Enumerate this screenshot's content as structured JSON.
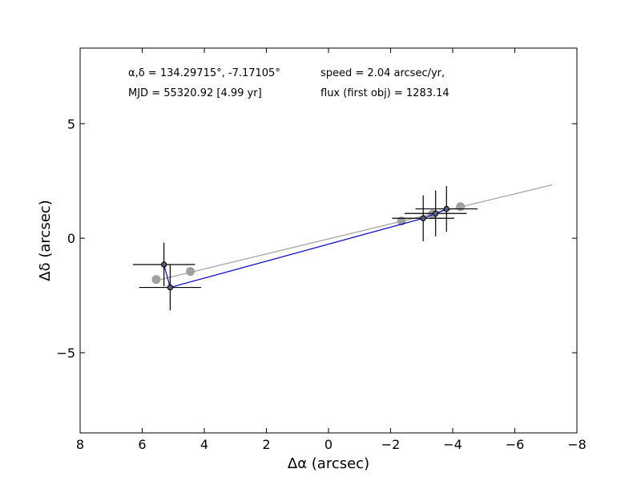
{
  "chart_data": {
    "type": "scatter",
    "xlabel": "Δα (arcsec)",
    "ylabel": "Δδ (arcsec)",
    "xlim": [
      8,
      -8
    ],
    "ylim": [
      -8.5,
      8.3
    ],
    "xticks": [
      8,
      6,
      4,
      2,
      0,
      -2,
      -4,
      -6,
      -8
    ],
    "xtick_labels": [
      "8",
      "6",
      "4",
      "2",
      "0",
      "−2",
      "−4",
      "−6",
      "−8"
    ],
    "yticks": [
      5,
      0,
      -5
    ],
    "ytick_labels": [
      "5",
      "0",
      "−5"
    ],
    "grid": false,
    "annotations": {
      "coords": "α,δ = 134.29715°, -7.17105°",
      "mjd": "MJD = 55320.92 [4.99 yr]",
      "speed": "speed = 2.04 arcsec/yr,",
      "flux": "flux (first obj) = 1283.14"
    },
    "observed": {
      "color": "#0000cc",
      "points": [
        {
          "x": 5.3,
          "y": -1.15,
          "xerr": 1.0,
          "yerr": 0.95
        },
        {
          "x": 5.1,
          "y": -2.15,
          "xerr": 1.0,
          "yerr": 1.0
        },
        {
          "x": -3.05,
          "y": 0.87,
          "xerr": 1.0,
          "yerr": 1.0
        },
        {
          "x": -3.45,
          "y": 1.08,
          "xerr": 1.0,
          "yerr": 1.0
        },
        {
          "x": -3.8,
          "y": 1.28,
          "xerr": 1.0,
          "yerr": 1.0
        }
      ]
    },
    "model": {
      "color": "#a0a0a0",
      "line": [
        [
          5.55,
          -1.85
        ],
        [
          -7.2,
          2.33
        ]
      ],
      "points": [
        {
          "x": 5.55,
          "y": -1.8
        },
        {
          "x": 4.45,
          "y": -1.45
        },
        {
          "x": -2.35,
          "y": 0.75
        },
        {
          "x": -3.35,
          "y": 1.05
        },
        {
          "x": -4.25,
          "y": 1.38
        }
      ]
    }
  }
}
